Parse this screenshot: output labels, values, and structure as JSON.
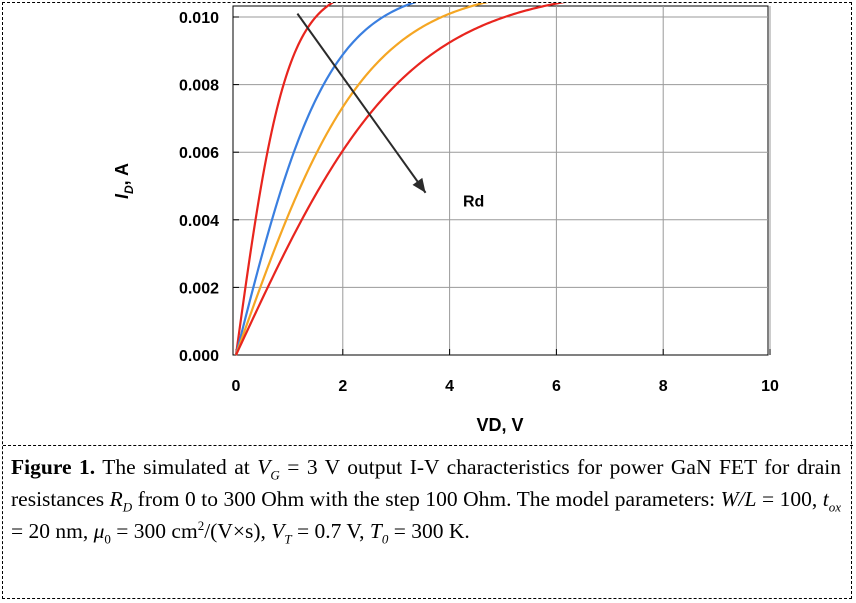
{
  "chart_data": {
    "type": "line",
    "xlabel": "VD, V",
    "ylabel_main": "I",
    "ylabel_sub": "D",
    "ylabel_rest": ", A",
    "xlim": [
      0,
      10
    ],
    "ylim": [
      0,
      0.011
    ],
    "x_ticks": [
      "0",
      "2",
      "4",
      "6",
      "8",
      "10"
    ],
    "y_ticks": [
      "0.000",
      "0.002",
      "0.004",
      "0.006",
      "0.008",
      "0.010"
    ],
    "grid": true,
    "saturation": 0.0109,
    "series": [
      {
        "color": "#e8251e",
        "v0": 0.95,
        "points": [
          [
            0,
            0
          ],
          [
            0.5,
            0.00425
          ],
          [
            1,
            0.0069
          ],
          [
            1.5,
            0.00845
          ],
          [
            2,
            0.0095
          ],
          [
            3,
            0.0104
          ],
          [
            4,
            0.0107
          ],
          [
            6,
            0.0109
          ],
          [
            10,
            0.0109
          ]
        ]
      },
      {
        "color": "#3a7fe0",
        "v0": 1.75,
        "points": [
          [
            0,
            0
          ],
          [
            1,
            0.0048
          ],
          [
            2,
            0.008
          ],
          [
            3,
            0.0097
          ],
          [
            4,
            0.0105
          ],
          [
            6,
            0.0109
          ],
          [
            10,
            0.0109
          ]
        ]
      },
      {
        "color": "#f5a623",
        "v0": 2.45,
        "points": [
          [
            0,
            0
          ],
          [
            1,
            0.0036
          ],
          [
            2,
            0.0062
          ],
          [
            3,
            0.0081
          ],
          [
            4,
            0.0095
          ],
          [
            6,
            0.0107
          ],
          [
            10,
            0.0109
          ]
        ]
      },
      {
        "color": "#e8251e",
        "v0": 3.2,
        "points": [
          [
            0,
            0
          ],
          [
            1,
            0.0025
          ],
          [
            2,
            0.0049
          ],
          [
            3,
            0.0068
          ],
          [
            4,
            0.0083
          ],
          [
            6,
            0.0102
          ],
          [
            8,
            0.0108
          ],
          [
            10,
            0.0109
          ]
        ]
      }
    ],
    "annotations": [
      {
        "text": "Rd",
        "arrow_from": [
          1.15,
          0.0101
        ],
        "arrow_to": [
          3.55,
          0.0048
        ],
        "label_at": [
          4.25,
          0.0044
        ]
      }
    ]
  },
  "caption": {
    "figure_label": "Figure 1.",
    "t1": " The simulated at ",
    "vg_sym": "V",
    "vg_sub": "G",
    "t2": " = 3 V output I-V characteristics for power GaN FET for drain resistances ",
    "rd_sym": "R",
    "rd_sub": "D",
    "t3": " from 0 to 300 Ohm with the step 100 Ohm. The model parameters: ",
    "wl": "W/L",
    "t4": " = 100, ",
    "tox_sym": "t",
    "tox_sub": "ox",
    "t5": " = 20 nm, ",
    "mu_sym": "μ",
    "mu_sub": "0",
    "t6": " = 300 cm",
    "sq": "2",
    "t7": "/(V×s), ",
    "vt_sym": "V",
    "vt_sub": "T",
    "t8": " = 0.7 V, ",
    "t0_sym": "T",
    "t0_sub": "0",
    "t9": " = 300 K."
  }
}
